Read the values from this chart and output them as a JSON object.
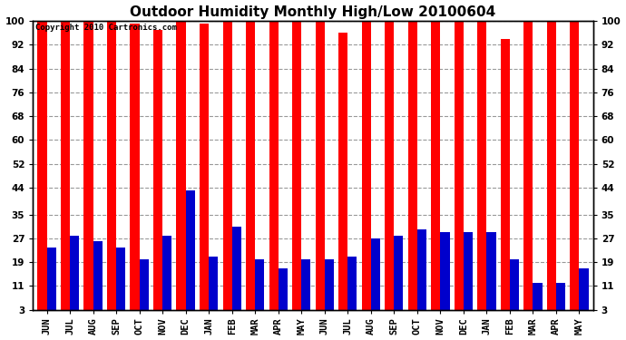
{
  "title": "Outdoor Humidity Monthly High/Low 20100604",
  "copyright_text": "Copyright 2010 Cartronics.com",
  "months": [
    "JUN",
    "JUL",
    "AUG",
    "SEP",
    "OCT",
    "NOV",
    "DEC",
    "JAN",
    "FEB",
    "MAR",
    "APR",
    "MAY",
    "JUN",
    "JUL",
    "AUG",
    "SEP",
    "OCT",
    "NOV",
    "DEC",
    "JAN",
    "FEB",
    "MAR",
    "APR",
    "MAY"
  ],
  "highs": [
    100,
    100,
    100,
    100,
    99,
    97,
    100,
    99,
    100,
    100,
    100,
    100,
    100,
    96,
    100,
    100,
    100,
    100,
    100,
    100,
    94,
    100,
    100,
    100
  ],
  "lows": [
    24,
    28,
    26,
    24,
    20,
    28,
    43,
    21,
    31,
    20,
    17,
    20,
    20,
    21,
    27,
    28,
    30,
    29,
    29,
    29,
    20,
    12,
    12,
    17
  ],
  "high_color": "#ff0000",
  "low_color": "#0000cc",
  "background_color": "#ffffff",
  "plot_bg_color": "#ffffff",
  "yticks": [
    3,
    11,
    19,
    27,
    35,
    44,
    52,
    60,
    68,
    76,
    84,
    92,
    100
  ],
  "ymin": 3,
  "ymax": 100,
  "grid_color": "#999999",
  "title_fontsize": 11,
  "tick_fontsize": 7.5
}
